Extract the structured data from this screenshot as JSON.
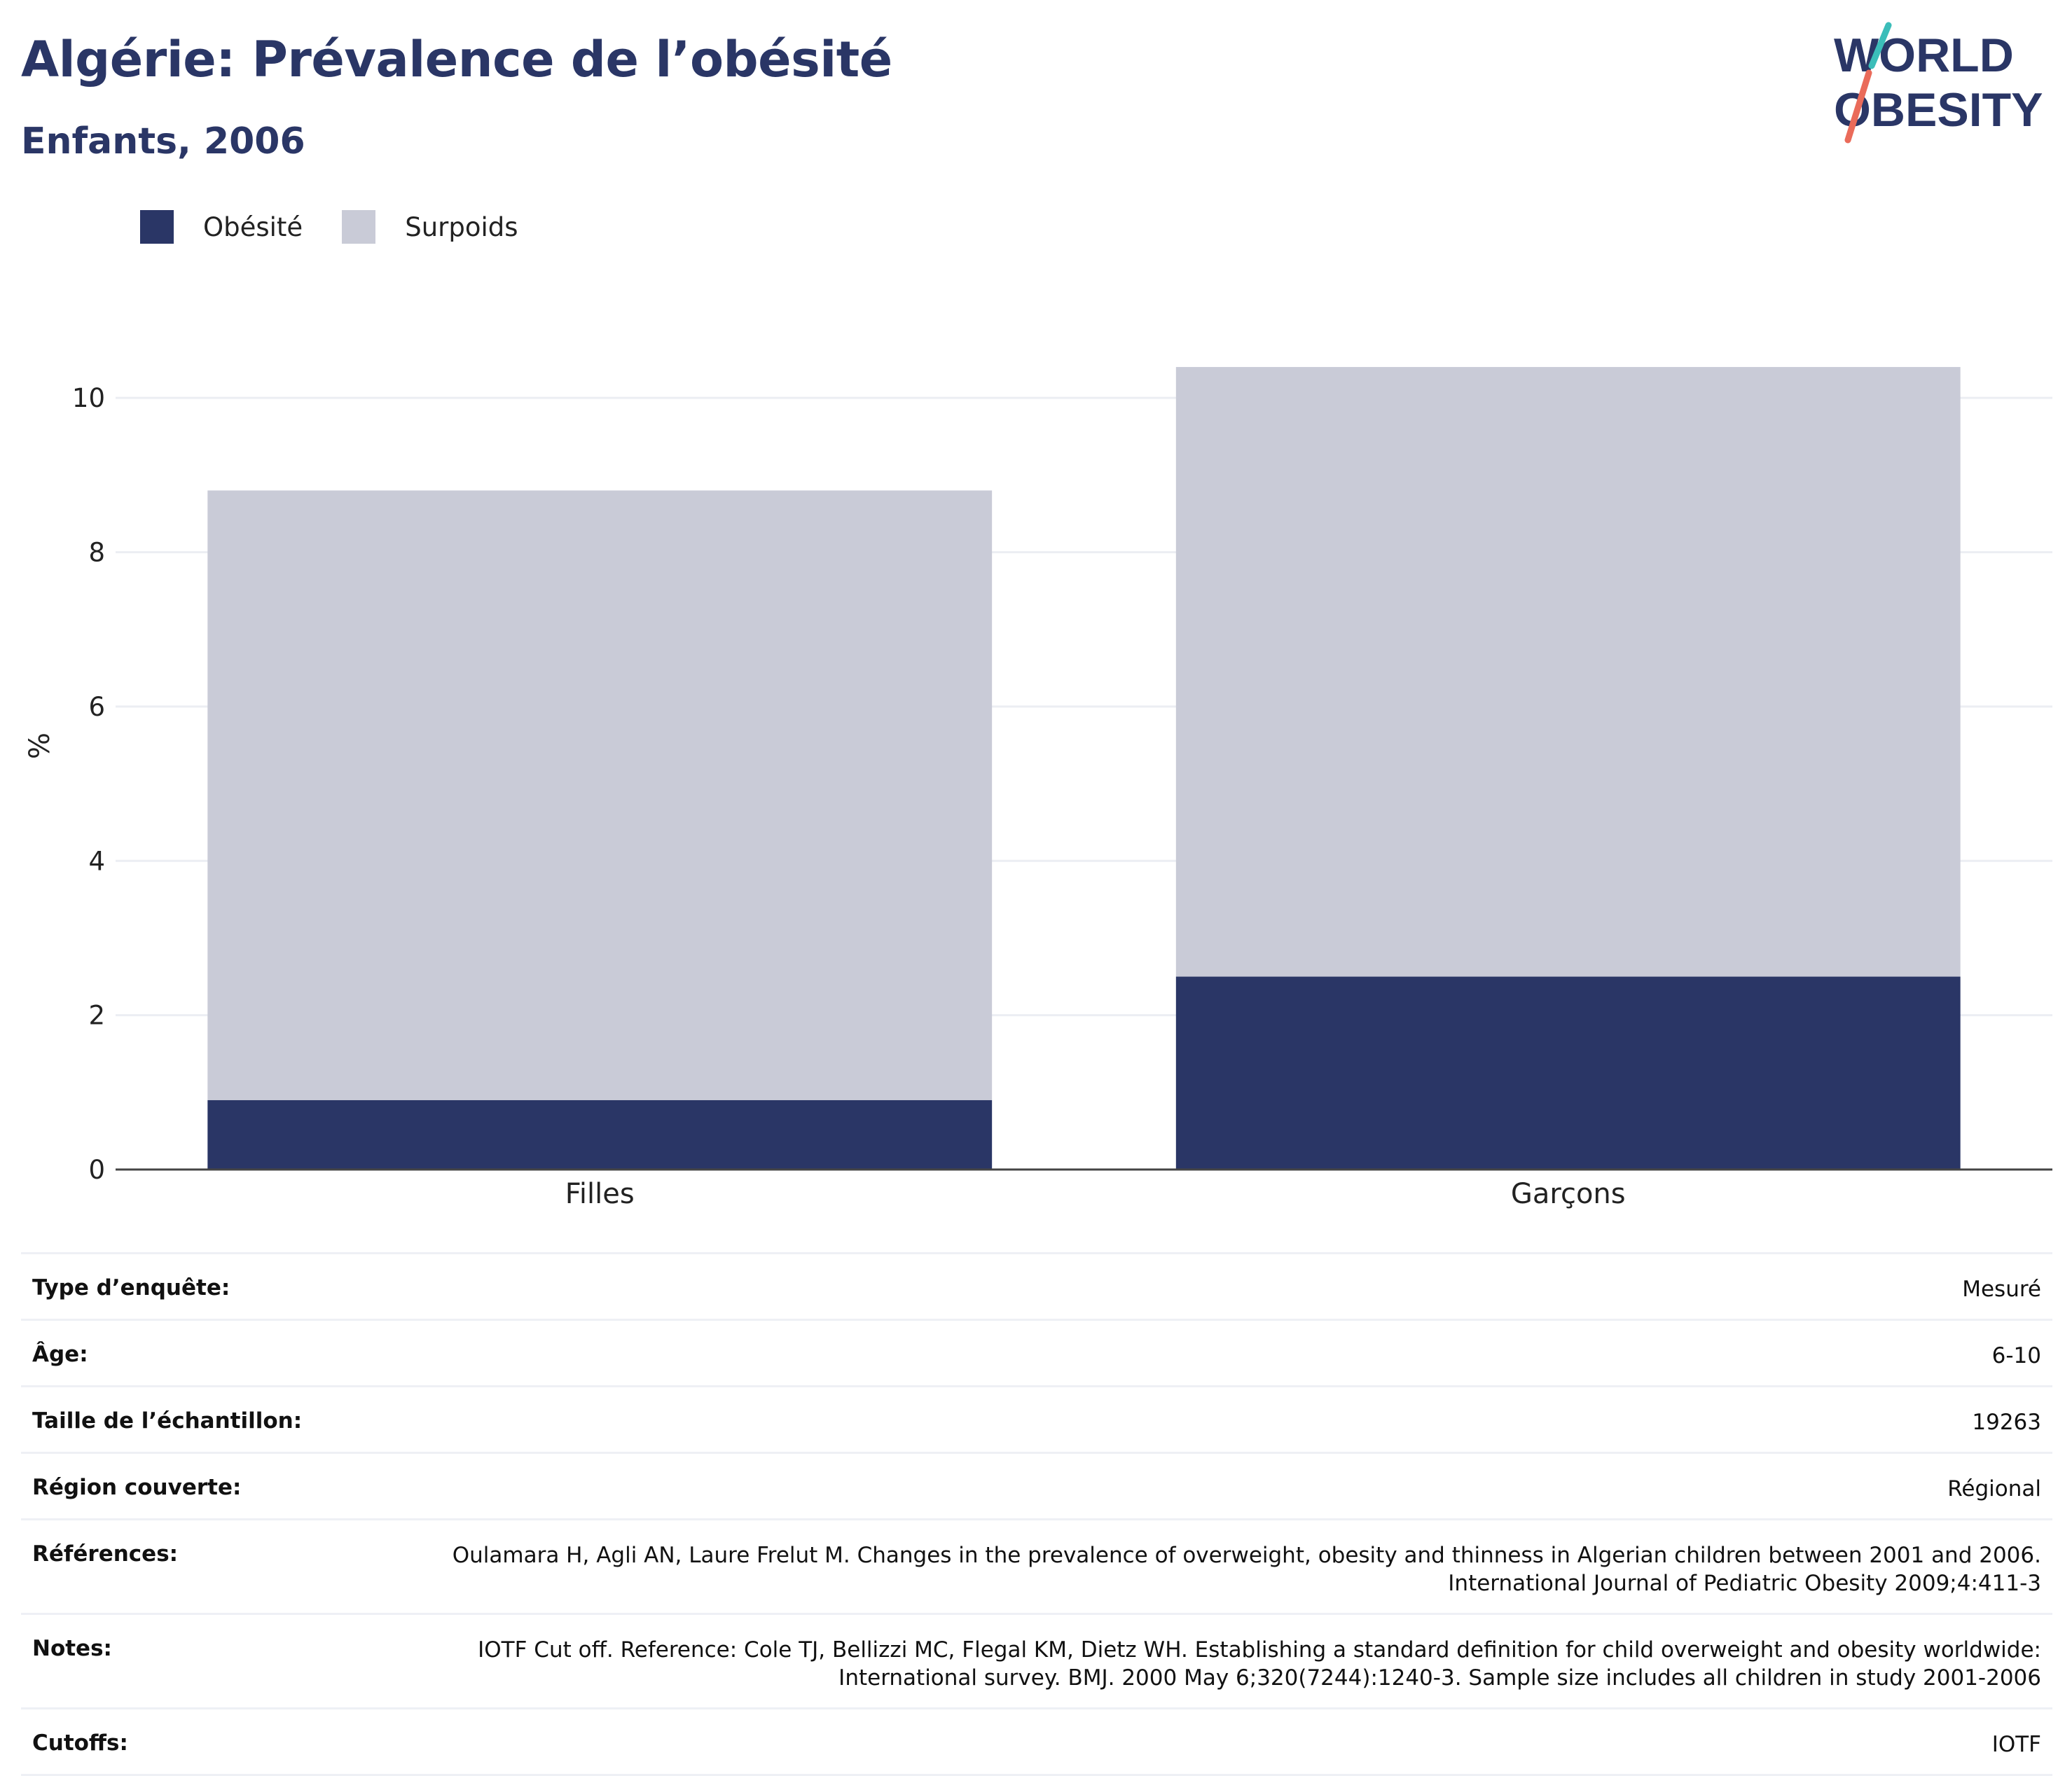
{
  "header": {
    "title": "Algérie: Prévalence de l’obésité",
    "subtitle": "Enfants, 2006"
  },
  "logo": {
    "line1": "WORLD",
    "line2": "OBESITY"
  },
  "legend": [
    {
      "label": "Obésité",
      "color": "#2a3666"
    },
    {
      "label": "Surpoids",
      "color": "#c9cbd7"
    }
  ],
  "chart_data": {
    "type": "bar",
    "stacked": true,
    "categories": [
      "Filles",
      "Garçons"
    ],
    "series": [
      {
        "name": "Obésité",
        "color": "#2a3666",
        "values": [
          0.9,
          2.5
        ]
      },
      {
        "name": "Surpoids",
        "color": "#c9cbd7",
        "values": [
          7.9,
          7.9
        ]
      }
    ],
    "ylabel": "%",
    "ylim": [
      0,
      10.8
    ],
    "yticks": [
      0,
      2,
      4,
      6,
      8,
      10
    ],
    "grid": true,
    "legend_position": "top-left"
  },
  "meta": [
    {
      "label": "Type d’enquête:",
      "value": "Mesuré"
    },
    {
      "label": "Âge:",
      "value": "6-10"
    },
    {
      "label": "Taille de l’échantillon:",
      "value": "19263"
    },
    {
      "label": "Région couverte:",
      "value": "Régional"
    },
    {
      "label": "Références:",
      "value": "Oulamara H, Agli AN, Laure Frelut M. Changes in the prevalence of overweight, obesity and thinness in Algerian children between 2001 and 2006. International Journal of Pediatric Obesity 2009;4:411-3"
    },
    {
      "label": "Notes:",
      "value": "IOTF Cut off. Reference: Cole TJ, Bellizzi MC, Flegal KM, Dietz WH. Establishing a standard definition for child overweight and obesity worldwide: International survey. BMJ. 2000 May 6;320(7244):1240-3. Sample size includes all children in study 2001-2006"
    },
    {
      "label": "Cutoffs:",
      "value": "IOTF"
    }
  ]
}
